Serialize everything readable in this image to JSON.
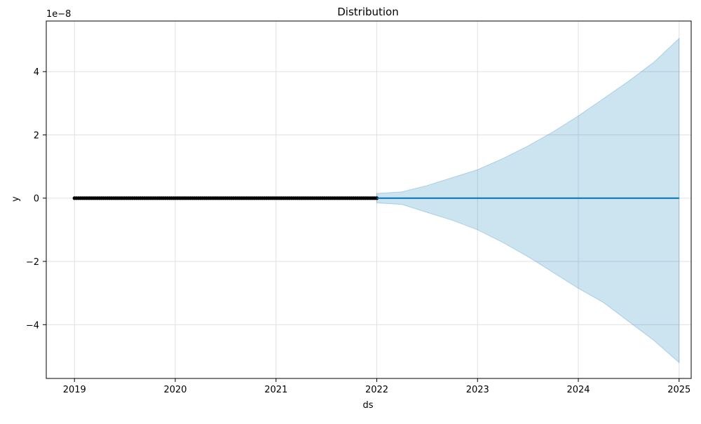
{
  "chart_data": {
    "type": "line",
    "title": "Distribution",
    "xlabel": "ds",
    "ylabel": "y",
    "y_scale_label": "1e−8",
    "y_scale_factor": 1e-08,
    "x_ticks": [
      "2019",
      "2020",
      "2021",
      "2022",
      "2023",
      "2024",
      "2025"
    ],
    "y_ticks": [
      {
        "value": 4,
        "label": "4"
      },
      {
        "value": 2,
        "label": "2"
      },
      {
        "value": 0,
        "label": "0"
      },
      {
        "value": -2,
        "label": "−2"
      },
      {
        "value": -4,
        "label": "−4"
      }
    ],
    "xlim": [
      2018.72,
      2025.12
    ],
    "ylim": [
      -5.7,
      5.6
    ],
    "grid": true,
    "colors": {
      "history_points": "#000000",
      "forecast_line": "#0072B2",
      "uncertainty_band": "#0072B2",
      "grid": "#e0e0e0"
    },
    "series": [
      {
        "role": "observed",
        "x_range": [
          2019.0,
          2022.0
        ],
        "value": 0
      },
      {
        "role": "forecast",
        "x_range": [
          2022.0,
          2025.0
        ],
        "value": 0
      }
    ],
    "uncertainty_band": {
      "x": [
        2022.0,
        2022.25,
        2022.5,
        2022.75,
        2023.0,
        2023.25,
        2023.5,
        2023.75,
        2024.0,
        2024.25,
        2024.5,
        2024.75,
        2025.0
      ],
      "upper": [
        0.15,
        0.2,
        0.4,
        0.65,
        0.9,
        1.25,
        1.65,
        2.1,
        2.6,
        3.15,
        3.7,
        4.3,
        5.05
      ],
      "lower": [
        -0.15,
        -0.2,
        -0.45,
        -0.7,
        -1.0,
        -1.4,
        -1.85,
        -2.35,
        -2.85,
        -3.3,
        -3.9,
        -4.5,
        -5.2
      ]
    }
  }
}
